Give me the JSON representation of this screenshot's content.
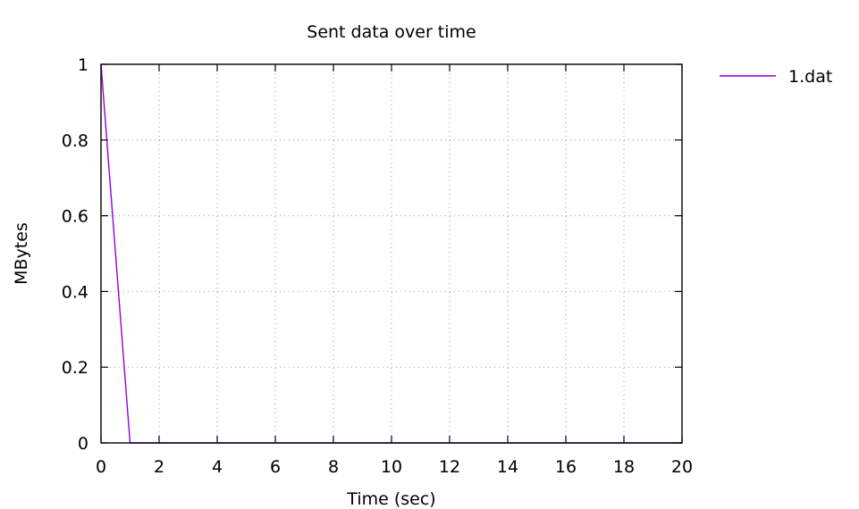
{
  "chart_data": {
    "type": "line",
    "title": "Sent data over time",
    "xlabel": "Time (sec)",
    "ylabel": "MBytes",
    "xlim": [
      0,
      20
    ],
    "ylim": [
      0,
      1
    ],
    "x_ticks": [
      "0",
      "2",
      "4",
      "6",
      "8",
      "10",
      "12",
      "14",
      "16",
      "18",
      "20"
    ],
    "y_ticks": [
      "0",
      "0.2",
      "0.4",
      "0.6",
      "0.8",
      "1"
    ],
    "grid": true,
    "legend_position": "top-right, outside plot",
    "series": [
      {
        "name": "1.dat",
        "color": "#9400d3",
        "x": [
          0,
          1,
          20
        ],
        "y": [
          1,
          0,
          0
        ]
      }
    ]
  }
}
